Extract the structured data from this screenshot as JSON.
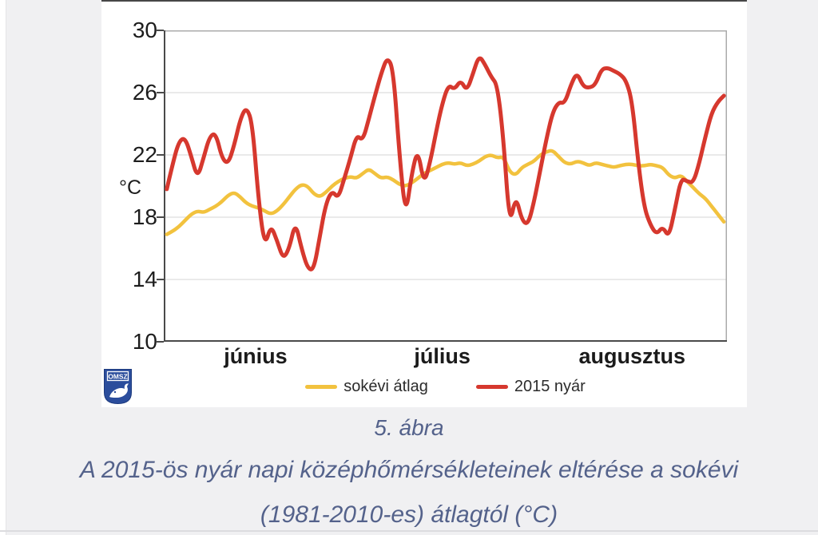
{
  "figure": {
    "y_unit_label": "°C",
    "logo_text": "OMSZ"
  },
  "legend": {
    "item1": "sokévi átlag",
    "item2": "2015 nyár"
  },
  "caption": {
    "line1": "5. ábra",
    "line2": "A 2015-ös nyár napi középhőmérsékleteinek eltérése a sokévi",
    "line3": "(1981-2010-es) átlagtól (°C)"
  },
  "chart_data": {
    "type": "line",
    "title": "",
    "xlabel": "",
    "ylabel": "°C",
    "ylim": [
      10,
      30
    ],
    "yticks": [
      10,
      14,
      18,
      22,
      26,
      30
    ],
    "grid": true,
    "legend_position": "bottom",
    "x_unit": "day of summer 2015 (June 1 – August 31)",
    "months": [
      "június",
      "július",
      "augusztus"
    ],
    "month_day_counts": [
      30,
      31,
      31
    ],
    "colors": {
      "average": "#F2C23E",
      "year2015": "#D6382E",
      "gridline": "#E3E3E3",
      "frame": "#ABABAB",
      "axis": "#4A4A4A"
    },
    "series": [
      {
        "name": "sokévi átlag",
        "color": "#F2C23E",
        "values": [
          16.9,
          17.1,
          17.4,
          17.8,
          18.2,
          18.4,
          18.3,
          18.5,
          18.7,
          19.0,
          19.4,
          19.6,
          19.3,
          18.9,
          18.7,
          18.6,
          18.4,
          18.2,
          18.4,
          18.8,
          19.3,
          19.8,
          20.1,
          20.0,
          19.5,
          19.3,
          19.6,
          20.0,
          20.3,
          20.5,
          20.6,
          20.5,
          20.8,
          21.1,
          20.8,
          20.5,
          20.6,
          20.4,
          20.1,
          20.0,
          20.2,
          20.5,
          20.8,
          21.0,
          21.2,
          21.4,
          21.5,
          21.4,
          21.5,
          21.3,
          21.4,
          21.6,
          21.9,
          22.0,
          21.8,
          21.9,
          20.9,
          20.7,
          21.2,
          21.4,
          21.6,
          22.0,
          22.2,
          22.3,
          21.9,
          21.5,
          21.4,
          21.6,
          21.5,
          21.3,
          21.5,
          21.4,
          21.3,
          21.2,
          21.3,
          21.4,
          21.4,
          21.3,
          21.3,
          21.4,
          21.3,
          21.2,
          20.7,
          20.5,
          20.7,
          20.3,
          19.9,
          19.5,
          19.2,
          18.7,
          18.2,
          17.7
        ]
      },
      {
        "name": "2015 nyár",
        "color": "#D6382E",
        "values": [
          19.8,
          21.5,
          22.9,
          23.1,
          21.9,
          20.5,
          21.8,
          23.2,
          23.4,
          21.8,
          21.4,
          22.6,
          24.3,
          25.1,
          24.0,
          19.0,
          16.1,
          17.5,
          16.5,
          15.3,
          16.0,
          17.7,
          16.0,
          14.7,
          14.6,
          16.8,
          18.9,
          19.7,
          19.2,
          20.5,
          21.8,
          23.3,
          22.9,
          24.3,
          25.8,
          27.2,
          28.3,
          27.5,
          22.0,
          18.0,
          20.8,
          22.4,
          20.1,
          21.5,
          23.5,
          25.3,
          26.5,
          26.2,
          26.8,
          26.1,
          27.2,
          28.4,
          27.8,
          27.0,
          26.5,
          23.0,
          17.4,
          19.4,
          17.8,
          17.5,
          19.0,
          21.0,
          23.0,
          24.7,
          25.4,
          25.3,
          26.5,
          27.3,
          26.4,
          26.3,
          26.5,
          27.5,
          27.6,
          27.4,
          27.2,
          26.8,
          25.5,
          21.5,
          18.6,
          17.5,
          16.9,
          17.4,
          16.7,
          18.5,
          20.5,
          20.3,
          20.2,
          21.5,
          23.2,
          24.7,
          25.4,
          25.8
        ]
      }
    ]
  }
}
